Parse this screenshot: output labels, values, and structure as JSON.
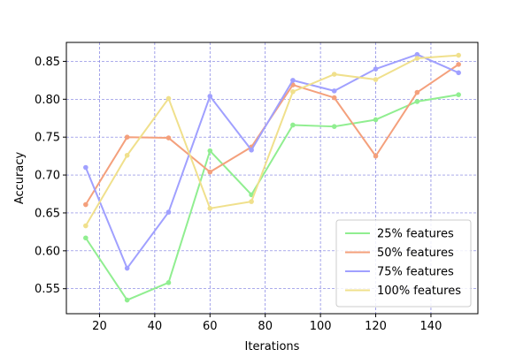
{
  "chart_data": {
    "type": "line",
    "title": "",
    "xlabel": "Iterations",
    "ylabel": "Accuracy",
    "x": [
      15,
      30,
      45,
      60,
      75,
      90,
      105,
      120,
      135,
      150
    ],
    "xlim": [
      8,
      157
    ],
    "ylim": [
      0.517,
      0.875
    ],
    "xticks": [
      20,
      40,
      60,
      80,
      100,
      120,
      140
    ],
    "yticks": [
      0.55,
      0.6,
      0.65,
      0.7,
      0.75,
      0.8,
      0.85
    ],
    "grid": true,
    "grid_color": "#7b7be0",
    "legend_position": "lower-right",
    "series": [
      {
        "name": "25% features",
        "color": "#90ee90",
        "values": [
          0.617,
          0.535,
          0.558,
          0.732,
          0.674,
          0.766,
          0.764,
          0.773,
          0.797,
          0.806
        ]
      },
      {
        "name": "50% features",
        "color": "#f4a07c",
        "values": [
          0.661,
          0.75,
          0.749,
          0.704,
          0.737,
          0.819,
          0.802,
          0.725,
          0.809,
          0.846
        ]
      },
      {
        "name": "75% features",
        "color": "#a0a0ff",
        "values": [
          0.71,
          0.577,
          0.651,
          0.804,
          0.733,
          0.825,
          0.811,
          0.84,
          0.859,
          0.835
        ]
      },
      {
        "name": "100% features",
        "color": "#f0e08c",
        "values": [
          0.633,
          0.726,
          0.801,
          0.656,
          0.665,
          0.81,
          0.833,
          0.826,
          0.854,
          0.858
        ]
      }
    ]
  }
}
